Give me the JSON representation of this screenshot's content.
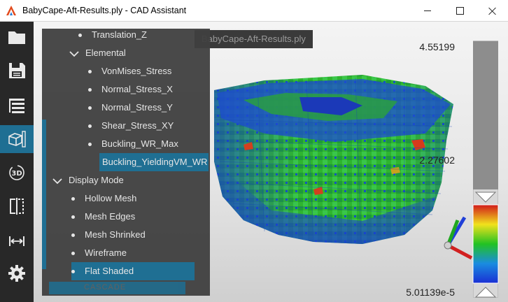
{
  "window": {
    "title": "BabyCape-Aft-Results.ply - CAD Assistant"
  },
  "viewport": {
    "tab_label": "BabyCape-Aft-Results.ply"
  },
  "toolbar": {
    "items": [
      {
        "name": "folder-icon"
      },
      {
        "name": "save-icon"
      },
      {
        "name": "model-tree-icon"
      },
      {
        "name": "display-mode-icon",
        "active": true
      },
      {
        "name": "3d-view-icon"
      },
      {
        "name": "section-plane-icon"
      },
      {
        "name": "measure-icon"
      },
      {
        "name": "settings-icon"
      }
    ]
  },
  "tree": {
    "items": [
      {
        "label": "Translation_Z",
        "type": "leaf",
        "level": 2
      },
      {
        "label": "Elemental",
        "type": "group",
        "level": 1,
        "expanded": true
      },
      {
        "label": "VonMises_Stress",
        "type": "leaf",
        "level": 2
      },
      {
        "label": "Normal_Stress_X",
        "type": "leaf",
        "level": 2
      },
      {
        "label": "Normal_Stress_Y",
        "type": "leaf",
        "level": 2
      },
      {
        "label": "Shear_Stress_XY",
        "type": "leaf",
        "level": 2
      },
      {
        "label": "Buckling_WR_Max",
        "type": "leaf",
        "level": 2
      },
      {
        "label": "Buckling_YieldingVM_WR",
        "type": "leaf",
        "level": 2,
        "selected": true
      },
      {
        "label": "Display Mode",
        "type": "group",
        "level": 0,
        "expanded": true
      },
      {
        "label": "Hollow Mesh",
        "type": "leaf",
        "level": 1
      },
      {
        "label": "Mesh Edges",
        "type": "leaf",
        "level": 1
      },
      {
        "label": "Mesh Shrinked",
        "type": "leaf",
        "level": 1
      },
      {
        "label": "Wireframe",
        "type": "leaf",
        "level": 1
      },
      {
        "label": "Flat Shaded",
        "type": "leaf",
        "level": 1,
        "selected": true
      }
    ],
    "background_watermark": "CASCADE"
  },
  "color_scale": {
    "max_label": "4.55199",
    "mid_label": "2.27602",
    "min_label": "5.01139e-5",
    "colors": [
      "#d11a1a",
      "#f1e21c",
      "#22c222",
      "#1a8ce0",
      "#1a2fd4"
    ]
  },
  "colors": {
    "accent": "#1f6f93",
    "toolbar_bg": "#282828",
    "panel_bg": "#3f3f3f"
  }
}
